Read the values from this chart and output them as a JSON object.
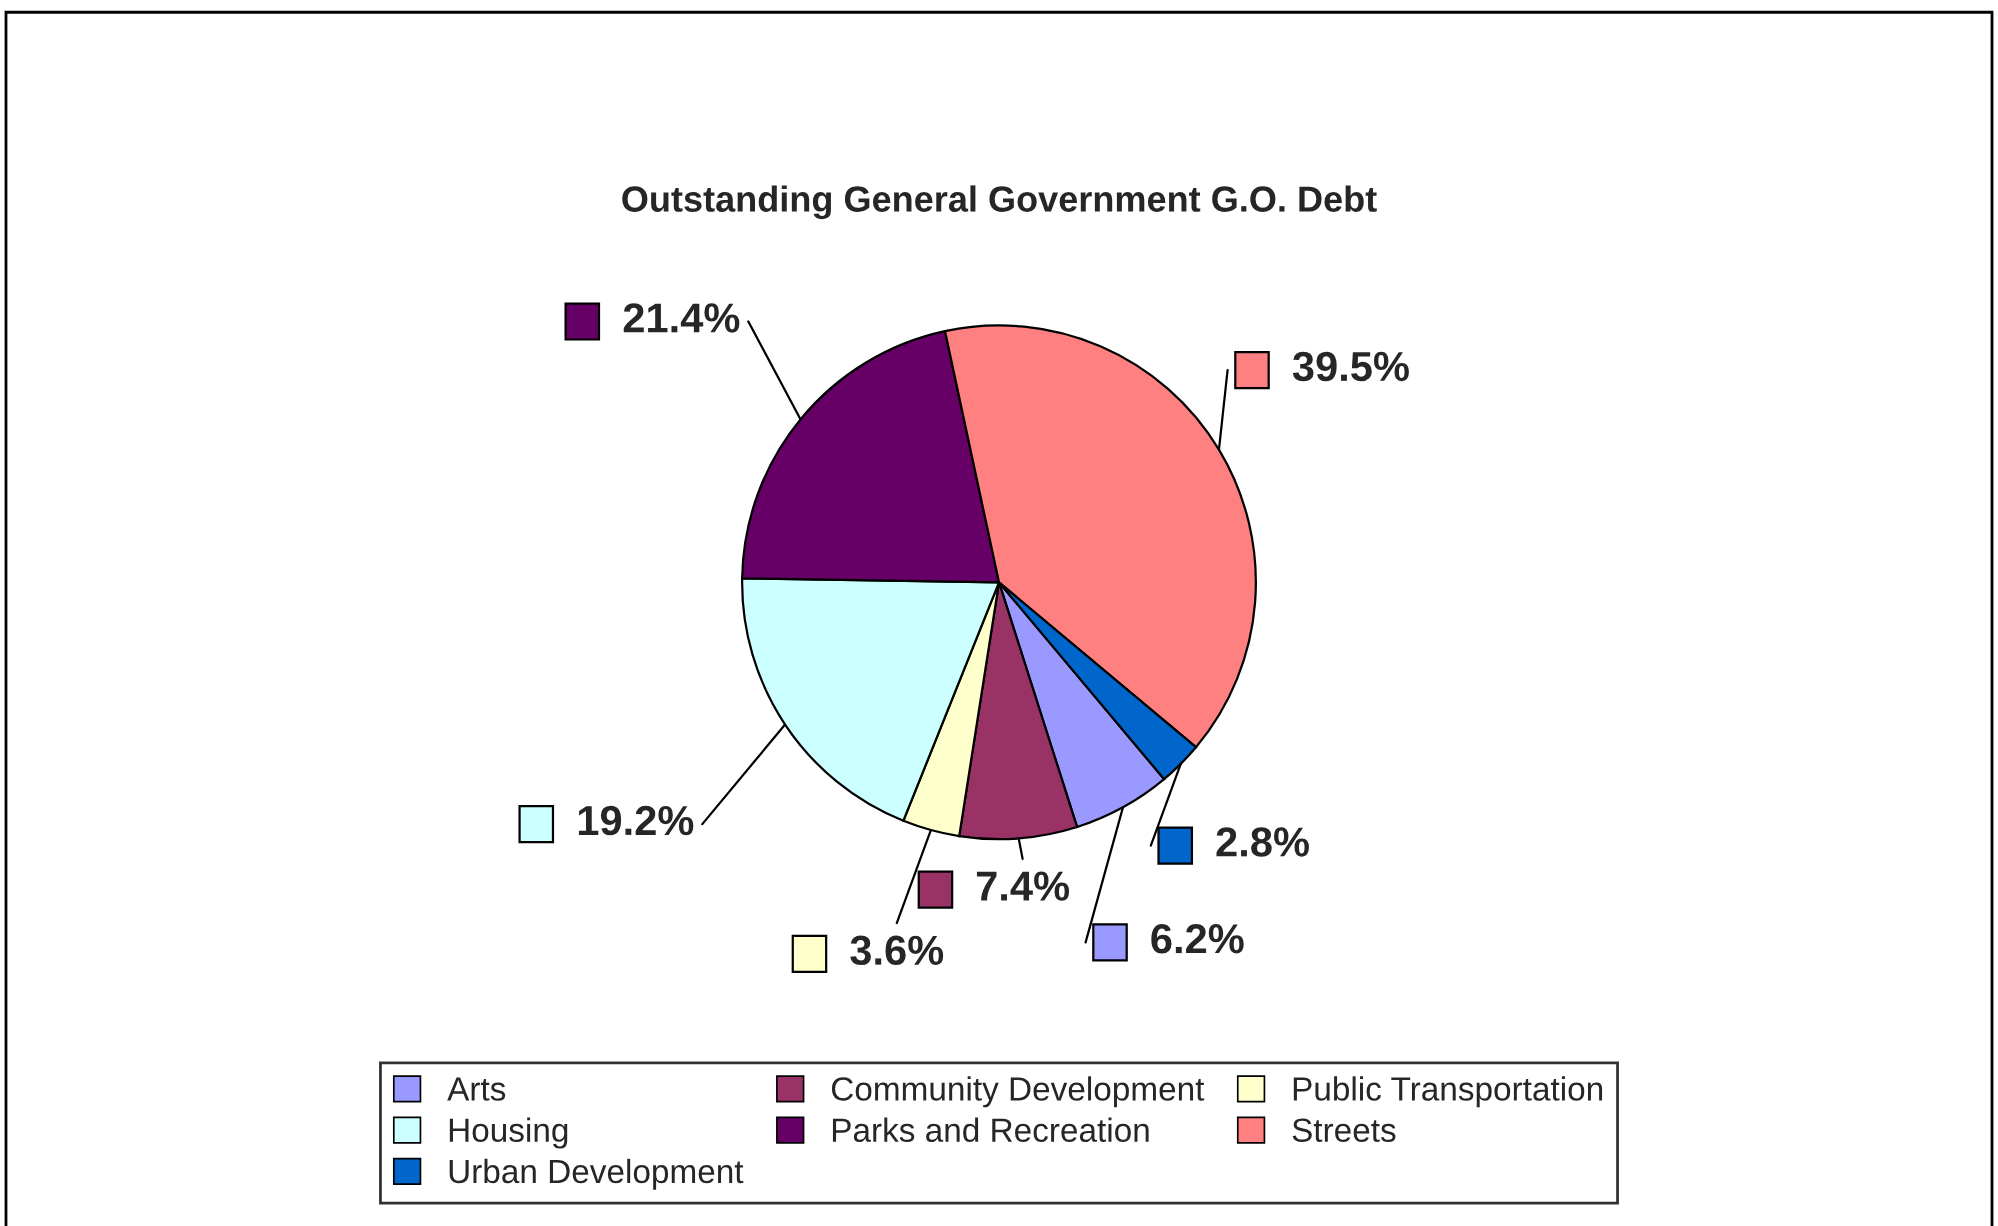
{
  "chart_data": {
    "type": "pie",
    "title": "Outstanding General Government G.O. Debt",
    "categories": [
      "Arts",
      "Community Development",
      "Public Transportation",
      "Housing",
      "Parks and Recreation",
      "Streets",
      "Urban Development"
    ],
    "values": [
      6.2,
      7.4,
      3.6,
      19.2,
      21.4,
      39.5,
      2.8
    ],
    "colors": [
      "#9999ff",
      "#993366",
      "#ffffcc",
      "#ccffff",
      "#660066",
      "#ff8080",
      "#0066cc"
    ],
    "value_labels": [
      "6.2%",
      "7.4%",
      "3.6%",
      "19.2%",
      "21.4%",
      "39.5%",
      "2.8%"
    ],
    "legend": "bottom"
  }
}
